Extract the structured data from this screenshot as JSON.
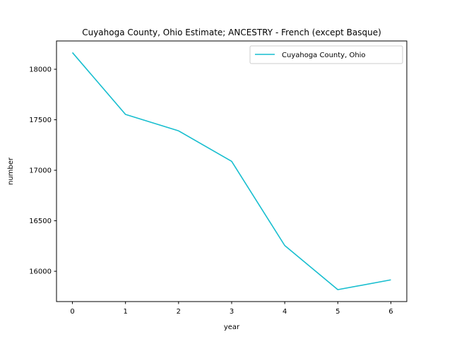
{
  "chart_data": {
    "type": "line",
    "title": "Cuyahoga County, Ohio Estimate; ANCESTRY - French (except Basque)",
    "xlabel": "year",
    "ylabel": "number",
    "x": [
      0,
      1,
      2,
      3,
      4,
      5,
      6
    ],
    "x_ticks": [
      "0",
      "1",
      "2",
      "3",
      "4",
      "5",
      "6"
    ],
    "y_ticks": [
      "16000",
      "16500",
      "17000",
      "17500",
      "18000"
    ],
    "y_tick_values": [
      16000,
      16500,
      17000,
      17500,
      18000
    ],
    "xlim": [
      -0.3,
      6.3
    ],
    "ylim": [
      15700,
      18280
    ],
    "grid": false,
    "legend_position": "upper right",
    "series": [
      {
        "name": "Cuyahoga County, Ohio",
        "color": "#17becf",
        "values": [
          18165,
          17553,
          17390,
          17088,
          16255,
          15818,
          15915
        ]
      }
    ]
  }
}
